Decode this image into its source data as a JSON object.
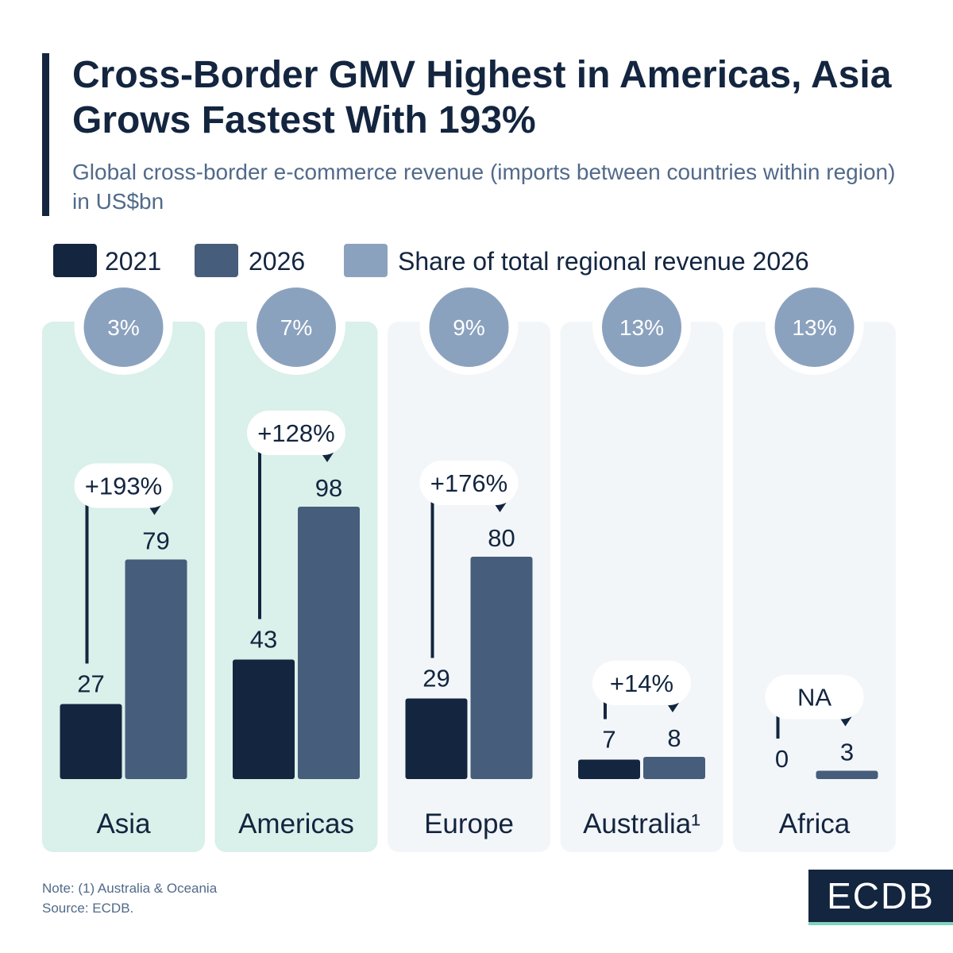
{
  "header": {
    "title": "Cross-Border GMV Highest in Americas, Asia Grows Fastest With 193%",
    "subtitle": "Global cross-border e-commerce revenue (imports between countries within region) in US$bn"
  },
  "legend": [
    {
      "label": "2021",
      "color": "#13253f"
    },
    {
      "label": "2026",
      "color": "#465d7c"
    },
    {
      "label": "Share of total regional revenue 2026",
      "color": "#8ba2bf"
    }
  ],
  "colors": {
    "bar_2021": "#13253f",
    "bar_2026": "#465d7c",
    "share_circle": "#8ba2bf",
    "panel_highlight": "#daf0ea",
    "panel_default": "#f3f6f9",
    "text": "#13253f"
  },
  "chart_data": {
    "type": "bar",
    "title": "Cross-Border GMV Highest in Americas, Asia Grows Fastest With 193%",
    "ylabel": "US$bn",
    "ylim": [
      0,
      100
    ],
    "categories": [
      "Asia",
      "Americas",
      "Europe",
      "Australia¹",
      "Africa"
    ],
    "series": [
      {
        "name": "2021",
        "values": [
          27,
          43,
          29,
          7,
          0
        ]
      },
      {
        "name": "2026",
        "values": [
          79,
          98,
          80,
          8,
          3
        ]
      }
    ],
    "growth_labels": [
      "+193%",
      "+128%",
      "+176%",
      "+14%",
      "NA"
    ],
    "share_2026": [
      "3%",
      "7%",
      "9%",
      "13%",
      "13%"
    ],
    "highlighted": [
      true,
      true,
      false,
      false,
      false
    ]
  },
  "footer": {
    "note": "Note: (1) Australia & Oceania",
    "source": "Source: ECDB.",
    "logo": "ECDB"
  }
}
